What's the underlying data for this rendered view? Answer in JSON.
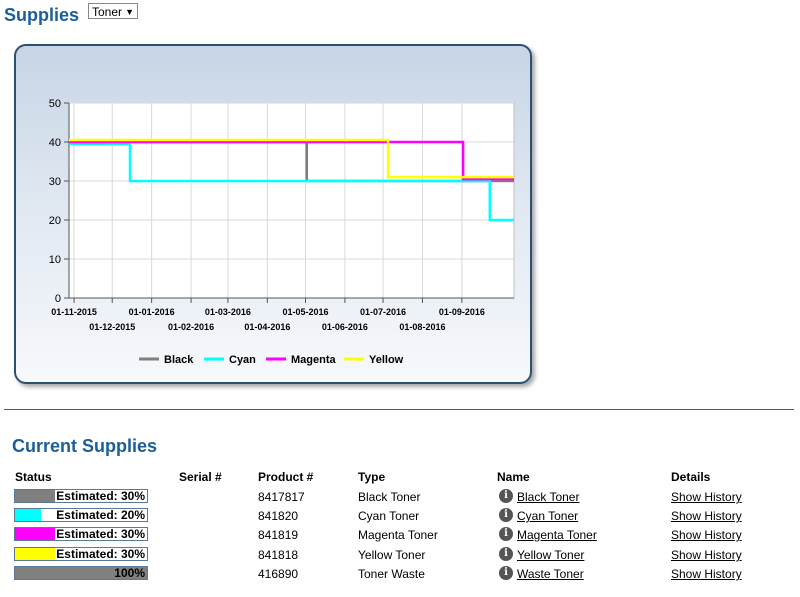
{
  "header": {
    "title": "Supplies",
    "filter_value": "Toner"
  },
  "chart_data": {
    "type": "line",
    "ylim": [
      0,
      50
    ],
    "yticks": [
      0,
      10,
      20,
      30,
      40,
      50
    ],
    "xlabels_row1": [
      "01-11-2015",
      "01-01-2016",
      "01-03-2016",
      "01-05-2016",
      "01-07-2016",
      "01-09-2016"
    ],
    "xlabels_row2": [
      "01-12-2015",
      "01-02-2016",
      "01-04-2016",
      "01-06-2016",
      "01-08-2016"
    ],
    "series": [
      {
        "name": "Black",
        "color": "#808080",
        "points": [
          [
            "2015-10-28",
            40
          ],
          [
            "2016-05-02",
            40
          ],
          [
            "2016-05-02",
            30
          ],
          [
            "2016-10-12",
            30
          ]
        ]
      },
      {
        "name": "Cyan",
        "color": "#00ffff",
        "points": [
          [
            "2015-10-28",
            39.5
          ],
          [
            "2015-12-15",
            39.5
          ],
          [
            "2015-12-15",
            30
          ],
          [
            "2016-09-23",
            30
          ],
          [
            "2016-09-23",
            20
          ],
          [
            "2016-10-12",
            20
          ]
        ]
      },
      {
        "name": "Magenta",
        "color": "#ff00ff",
        "points": [
          [
            "2015-10-28",
            40
          ],
          [
            "2016-09-02",
            40
          ],
          [
            "2016-09-02",
            30.5
          ],
          [
            "2016-10-12",
            30.5
          ]
        ]
      },
      {
        "name": "Yellow",
        "color": "#ffff00",
        "points": [
          [
            "2015-10-28",
            40.5
          ],
          [
            "2016-07-05",
            40.5
          ],
          [
            "2016-07-05",
            31
          ],
          [
            "2016-10-12",
            31
          ]
        ]
      }
    ]
  },
  "current": {
    "title": "Current Supplies",
    "headers": {
      "status": "Status",
      "serial": "Serial #",
      "product": "Product #",
      "type": "Type",
      "name": "Name",
      "details": "Details"
    },
    "rows": [
      {
        "status_text": "Estimated: 30%",
        "level": 0.3,
        "color": "#808080",
        "serial": "",
        "product": "8417817",
        "type": "Black Toner",
        "name": "Black Toner",
        "details": "Show History"
      },
      {
        "status_text": "Estimated: 20%",
        "level": 0.2,
        "color": "#00ffff",
        "serial": "",
        "product": "841820",
        "type": "Cyan Toner",
        "name": "Cyan Toner",
        "details": "Show History"
      },
      {
        "status_text": "Estimated: 30%",
        "level": 0.3,
        "color": "#ff00ff",
        "serial": "",
        "product": "841819",
        "type": "Magenta Toner",
        "name": "Magenta Toner",
        "details": "Show History"
      },
      {
        "status_text": "Estimated: 30%",
        "level": 0.3,
        "color": "#ffff00",
        "serial": "",
        "product": "841818",
        "type": "Yellow Toner",
        "name": "Yellow Toner",
        "details": "Show History"
      },
      {
        "status_text": "100%",
        "level": 1.0,
        "color": "#808080",
        "serial": "",
        "product": "416890",
        "type": "Toner Waste",
        "name": "Waste Toner",
        "details": "Show History"
      }
    ]
  }
}
